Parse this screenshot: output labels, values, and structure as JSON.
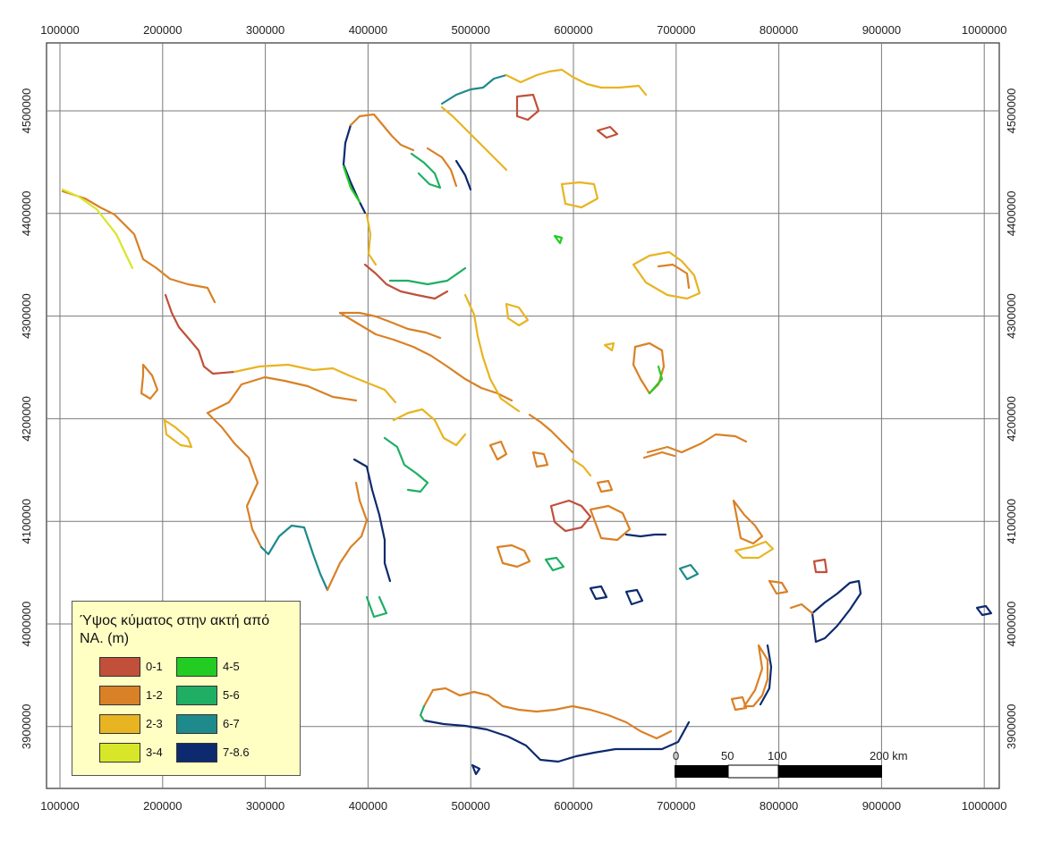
{
  "map": {
    "x_ticks": [
      "100000",
      "200000",
      "300000",
      "400000",
      "500000",
      "600000",
      "700000",
      "800000",
      "900000",
      "1000000"
    ],
    "y_ticks": [
      "4500000",
      "4400000",
      "4300000",
      "4200000",
      "4100000",
      "4000000",
      "3900000"
    ],
    "grid": true,
    "coast_colors": {
      "c01": "#c0503a",
      "c12": "#d98126",
      "c23": "#e8b421",
      "c34": "#d8e629",
      "c45": "#22cc22",
      "c56": "#1fae64",
      "c67": "#1e8a8c",
      "c78": "#0d2a6e"
    }
  },
  "legend": {
    "title": "Ύψος κύματος στην ακτή από  ΝΑ. (m)",
    "items": [
      {
        "label": "0-1",
        "color": "#c0503a"
      },
      {
        "label": "1-2",
        "color": "#d98126"
      },
      {
        "label": "2-3",
        "color": "#e8b421"
      },
      {
        "label": "3-4",
        "color": "#d8e629"
      },
      {
        "label": "4-5",
        "color": "#22cc22"
      },
      {
        "label": "5-6",
        "color": "#1fae64"
      },
      {
        "label": "6-7",
        "color": "#1e8a8c"
      },
      {
        "label": "7-8.6",
        "color": "#0d2a6e"
      }
    ]
  },
  "scale_bar": {
    "labels": [
      "0",
      "50",
      "100",
      "200 km"
    ]
  }
}
